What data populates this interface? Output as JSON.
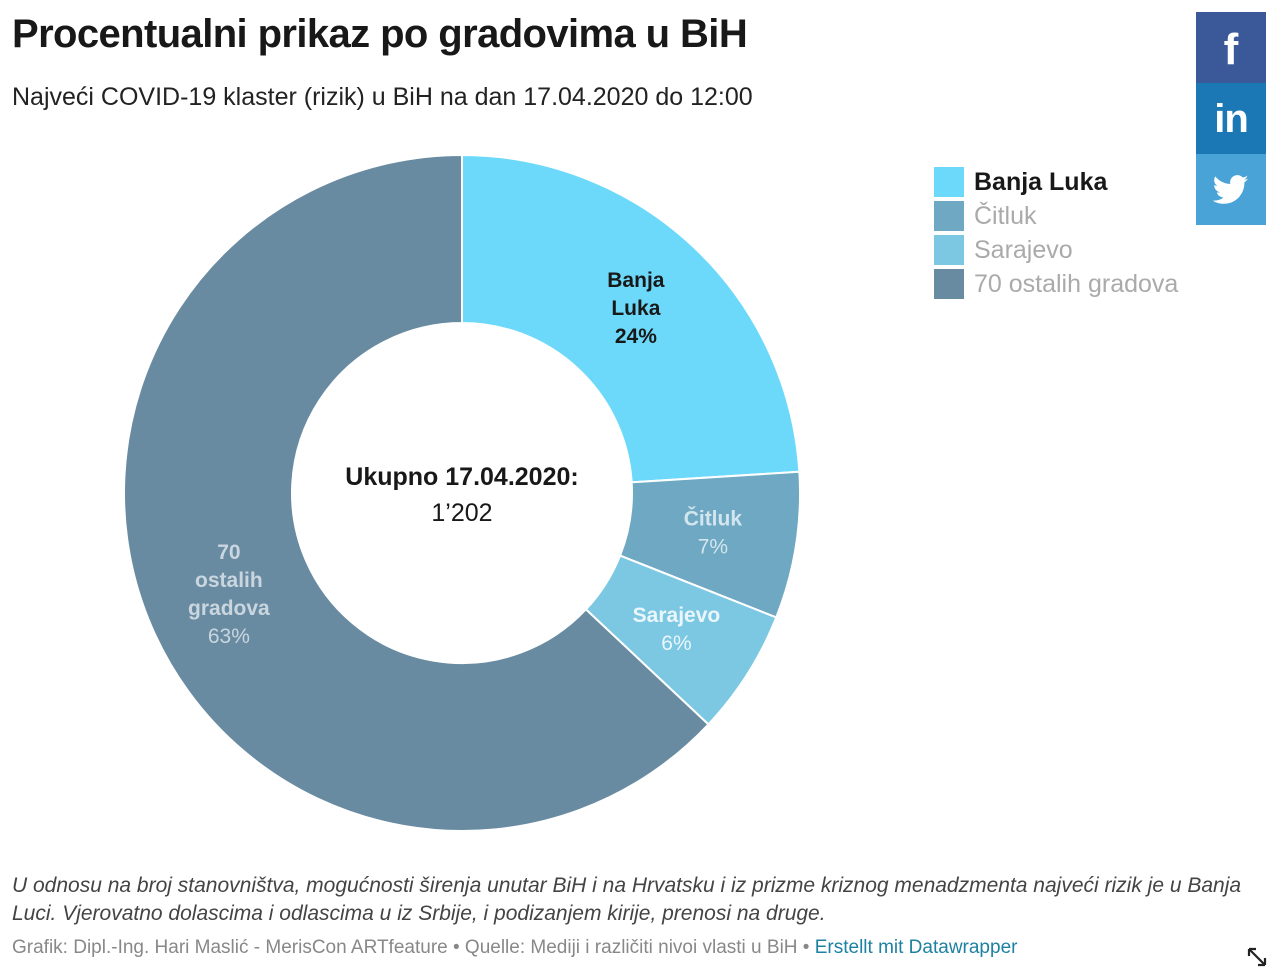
{
  "header": {
    "title": "Procentualni prikaz po gradovima u BiH",
    "subtitle": "Najveći COVID-19 klaster (rizik) u BiH na dan 17.04.2020 do 12:00"
  },
  "share": {
    "facebook_icon": "facebook-icon",
    "linkedin_icon": "linkedin-icon",
    "twitter_icon": "twitter-icon",
    "facebook_color": "#3b5998",
    "linkedin_color": "#1b78b5",
    "twitter_color": "#49a3d6"
  },
  "legend": {
    "items": [
      {
        "label": "Banja Luka",
        "color": "#6dd9fa",
        "active": true
      },
      {
        "label": "Čitluk",
        "color": "#6ea8c2",
        "active": false
      },
      {
        "label": "Sarajevo",
        "color": "#7cc8e2",
        "active": false
      },
      {
        "label": "70 ostalih gradova",
        "color": "#698ba1",
        "active": false
      }
    ]
  },
  "chart_data": {
    "type": "pie",
    "variant": "donut",
    "center_title": "Ukupno 17.04.2020:",
    "center_value": "1’202",
    "slices": [
      {
        "name_lines": [
          "Banja",
          "Luka"
        ],
        "label": "Banja Luka",
        "value": 24,
        "value_label": "24%",
        "color": "#6dd9fa",
        "label_color": "#181818",
        "highlighted": true
      },
      {
        "name_lines": [
          "Čitluk"
        ],
        "label": "Čitluk",
        "value": 7,
        "value_label": "7%",
        "color": "#6ea8c2",
        "label_color": "#d3e5ee",
        "highlighted": false
      },
      {
        "name_lines": [
          "Sarajevo"
        ],
        "label": "Sarajevo",
        "value": 6,
        "value_label": "6%",
        "color": "#7cc8e2",
        "label_color": "#eaf6fb",
        "highlighted": false
      },
      {
        "name_lines": [
          "70",
          "ostalih",
          "gradova"
        ],
        "label": "70 ostalih gradova",
        "value": 63,
        "value_label": "63%",
        "color": "#698ba1",
        "label_color": "#c9d6df",
        "highlighted": false
      }
    ]
  },
  "notes": "U odnosu na broj stanovništva, mogućnosti širenja unutar BiH i na Hrvatsku i iz prizme kriznog menadzmenta najveći rizik je u Banja Luci. Vjerovatno dolascima i odlascima u iz Srbije, i podizanjem kirije, prenosi na druge.",
  "footer": {
    "credit": "Grafik: Dipl.-Ing. Hari Maslić - MerisCon ARTfeature • Quelle: Mediji i različiti nivoi vlasti u BiH • ",
    "link": "Erstellt mit Datawrapper"
  },
  "resize_icon": "resize-icon"
}
